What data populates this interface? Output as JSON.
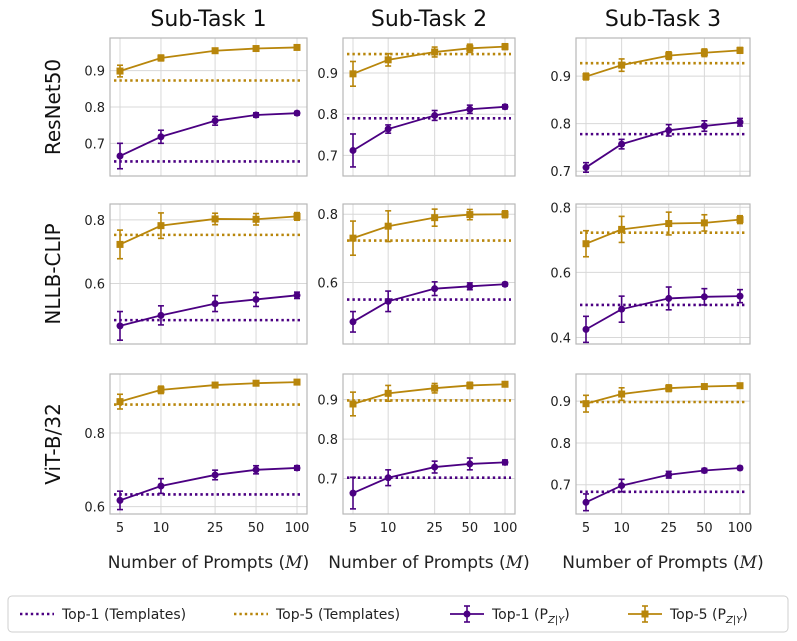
{
  "colors": {
    "top1": "#4b0082",
    "top5": "#b8860b"
  },
  "legend": {
    "top1_templates": "Top-1 (Templates)",
    "top5_templates": "Top-5 (Templates)",
    "top1_pzy": "Top-1 (P",
    "top5_pzy": "Top-5 (P",
    "sub": "Z|Y",
    "close": ")"
  },
  "xlabel_text": "Number of Prompts (",
  "xlabel_var": "M",
  "xlabel_close": ")",
  "chart_data": {
    "type": "line",
    "columns": [
      "Sub-Task 1",
      "Sub-Task 2",
      "Sub-Task 3"
    ],
    "rows": [
      "ResNet50",
      "NLLB-CLIP",
      "ViT-B/32"
    ],
    "x": [
      5,
      10,
      25,
      50,
      100
    ],
    "x_ticks": [
      "5",
      "10",
      "25",
      "50",
      "100"
    ],
    "xscale": "log",
    "panels": [
      {
        "row": "ResNet50",
        "col": "Sub-Task 1",
        "ylim": [
          0.61,
          0.99
        ],
        "yticks": [
          0.7,
          0.8,
          0.9
        ],
        "top1": [
          0.665,
          0.718,
          0.762,
          0.778,
          0.783
        ],
        "top1_err": [
          0.035,
          0.018,
          0.012,
          0.006,
          0.005
        ],
        "top5": [
          0.899,
          0.935,
          0.955,
          0.961,
          0.964
        ],
        "top5_err": [
          0.016,
          0.008,
          0.005,
          0.004,
          0.003
        ],
        "top1_templates": 0.65,
        "top5_templates": 0.873
      },
      {
        "row": "ResNet50",
        "col": "Sub-Task 2",
        "ylim": [
          0.65,
          0.985
        ],
        "yticks": [
          0.7,
          0.8,
          0.9
        ],
        "top1": [
          0.712,
          0.764,
          0.797,
          0.812,
          0.818
        ],
        "top1_err": [
          0.04,
          0.01,
          0.012,
          0.01,
          0.005
        ],
        "top5": [
          0.898,
          0.932,
          0.951,
          0.96,
          0.964
        ],
        "top5_err": [
          0.03,
          0.015,
          0.012,
          0.01,
          0.007
        ],
        "top1_templates": 0.79,
        "top5_templates": 0.946
      },
      {
        "row": "ResNet50",
        "col": "Sub-Task 3",
        "ylim": [
          0.69,
          0.98
        ],
        "yticks": [
          0.7,
          0.8,
          0.9
        ],
        "top1": [
          0.708,
          0.757,
          0.786,
          0.795,
          0.803
        ],
        "top1_err": [
          0.01,
          0.01,
          0.012,
          0.011,
          0.008
        ],
        "top5": [
          0.899,
          0.923,
          0.943,
          0.949,
          0.954
        ],
        "top5_err": [
          0.007,
          0.013,
          0.008,
          0.008,
          0.006
        ],
        "top1_templates": 0.778,
        "top5_templates": 0.927
      },
      {
        "row": "NLLB-CLIP",
        "col": "Sub-Task 1",
        "ylim": [
          0.41,
          0.85
        ],
        "yticks": [
          0.6,
          0.8
        ],
        "top1": [
          0.467,
          0.5,
          0.537,
          0.55,
          0.563
        ],
        "top1_err": [
          0.045,
          0.03,
          0.025,
          0.022,
          0.01
        ],
        "top5": [
          0.723,
          0.782,
          0.803,
          0.802,
          0.811
        ],
        "top5_err": [
          0.045,
          0.04,
          0.018,
          0.018,
          0.012
        ],
        "top1_templates": 0.485,
        "top5_templates": 0.753
      },
      {
        "row": "NLLB-CLIP",
        "col": "Sub-Task 2",
        "ylim": [
          0.42,
          0.83
        ],
        "yticks": [
          0.6,
          0.8
        ],
        "top1": [
          0.485,
          0.545,
          0.582,
          0.589,
          0.595
        ],
        "top1_err": [
          0.03,
          0.03,
          0.02,
          0.01,
          0.005
        ],
        "top5": [
          0.73,
          0.765,
          0.79,
          0.799,
          0.8
        ],
        "top5_err": [
          0.05,
          0.045,
          0.025,
          0.015,
          0.01
        ],
        "top1_templates": 0.55,
        "top5_templates": 0.723
      },
      {
        "row": "NLLB-CLIP",
        "col": "Sub-Task 3",
        "ylim": [
          0.38,
          0.81
        ],
        "yticks": [
          0.4,
          0.6,
          0.8
        ],
        "top1": [
          0.425,
          0.487,
          0.52,
          0.525,
          0.527
        ],
        "top1_err": [
          0.04,
          0.04,
          0.035,
          0.025,
          0.02
        ],
        "top5": [
          0.688,
          0.732,
          0.75,
          0.752,
          0.762
        ],
        "top5_err": [
          0.04,
          0.04,
          0.035,
          0.025,
          0.012
        ],
        "top1_templates": 0.5,
        "top5_templates": 0.722
      },
      {
        "row": "ViT-B/32",
        "col": "Sub-Task 1",
        "ylim": [
          0.58,
          0.96
        ],
        "yticks": [
          0.6,
          0.8
        ],
        "top1": [
          0.617,
          0.656,
          0.686,
          0.7,
          0.705
        ],
        "top1_err": [
          0.025,
          0.02,
          0.013,
          0.011,
          0.006
        ],
        "top5": [
          0.885,
          0.917,
          0.93,
          0.935,
          0.938
        ],
        "top5_err": [
          0.02,
          0.01,
          0.006,
          0.005,
          0.004
        ],
        "top1_templates": 0.633,
        "top5_templates": 0.877
      },
      {
        "row": "ViT-B/32",
        "col": "Sub-Task 2",
        "ylim": [
          0.61,
          0.965
        ],
        "yticks": [
          0.7,
          0.8,
          0.9
        ],
        "top1": [
          0.663,
          0.702,
          0.729,
          0.737,
          0.741
        ],
        "top1_err": [
          0.04,
          0.02,
          0.015,
          0.015,
          0.006
        ],
        "top5": [
          0.889,
          0.916,
          0.929,
          0.936,
          0.939
        ],
        "top5_err": [
          0.03,
          0.02,
          0.012,
          0.008,
          0.005
        ],
        "top1_templates": 0.702,
        "top5_templates": 0.898
      },
      {
        "row": "ViT-B/32",
        "col": "Sub-Task 3",
        "ylim": [
          0.63,
          0.965
        ],
        "yticks": [
          0.7,
          0.8,
          0.9
        ],
        "top1": [
          0.658,
          0.698,
          0.724,
          0.734,
          0.74
        ],
        "top1_err": [
          0.02,
          0.015,
          0.008,
          0.005,
          0.004
        ],
        "top5": [
          0.894,
          0.917,
          0.931,
          0.935,
          0.937
        ],
        "top5_err": [
          0.02,
          0.015,
          0.008,
          0.005,
          0.004
        ],
        "top1_templates": 0.683,
        "top5_templates": 0.898
      }
    ]
  }
}
